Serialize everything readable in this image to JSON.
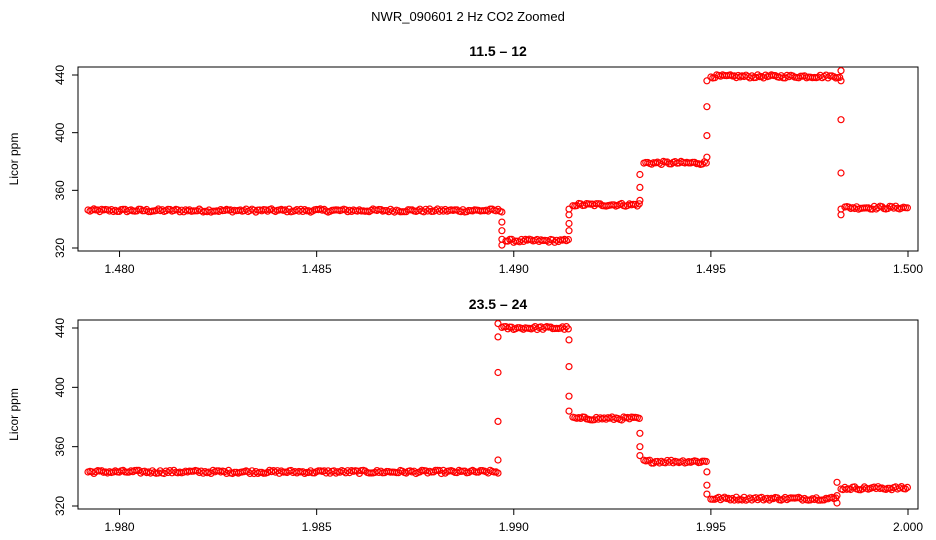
{
  "figure_title": "NWR_090601  2 Hz CO2 Zoomed",
  "colors": {
    "points": "#ff0000",
    "axes": "#000000",
    "background": "#ffffff"
  },
  "chart_data": [
    {
      "type": "scatter",
      "title": "11.5 – 12",
      "ylabel": "Licor ppm",
      "xlabel": "",
      "xlim": [
        1.4792,
        1.5
      ],
      "ylim": [
        320,
        440
      ],
      "xticks": [
        1.48,
        1.485,
        1.49,
        1.495,
        1.5
      ],
      "xtick_labels": [
        "1.480",
        "1.485",
        "1.490",
        "1.495",
        "1.500"
      ],
      "yticks": [
        320,
        360,
        400,
        440
      ],
      "ytick_labels": [
        "320",
        "360",
        "400",
        "440"
      ],
      "grid": false,
      "marker": "open-circle",
      "segments": [
        {
          "x_start": 1.4792,
          "x_end": 1.4897,
          "y": 346
        },
        {
          "x_start": 1.4898,
          "x_end": 1.4914,
          "y": 325
        },
        {
          "x_start": 1.4915,
          "x_end": 1.4932,
          "y": 350
        },
        {
          "x_start": 1.4933,
          "x_end": 1.4949,
          "y": 379
        },
        {
          "x_start": 1.495,
          "x_end": 1.4983,
          "y": 439
        },
        {
          "x_start": 1.4984,
          "x_end": 1.5,
          "y": 348
        }
      ],
      "transitions": [
        {
          "x": 1.4897,
          "y": [
            338,
            332,
            326,
            322
          ]
        },
        {
          "x": 1.4914,
          "y": [
            332,
            337,
            343,
            347
          ]
        },
        {
          "x": 1.4932,
          "y": [
            353,
            362,
            371
          ]
        },
        {
          "x": 1.4949,
          "y": [
            383,
            398,
            418,
            436
          ]
        },
        {
          "x": 1.4983,
          "y": [
            443,
            436,
            409,
            372,
            347,
            343
          ]
        }
      ]
    },
    {
      "type": "scatter",
      "title": "23.5 – 24",
      "ylabel": "Licor ppm",
      "xlabel": "",
      "xlim": [
        1.9792,
        2.0
      ],
      "ylim": [
        320,
        440
      ],
      "xticks": [
        1.98,
        1.985,
        1.99,
        1.995,
        2.0
      ],
      "xtick_labels": [
        "1.980",
        "1.985",
        "1.990",
        "1.995",
        "2.000"
      ],
      "yticks": [
        320,
        360,
        400,
        440
      ],
      "ytick_labels": [
        "320",
        "360",
        "400",
        "440"
      ],
      "grid": false,
      "marker": "open-circle",
      "segments": [
        {
          "x_start": 1.9792,
          "x_end": 1.9896,
          "y": 343
        },
        {
          "x_start": 1.9897,
          "x_end": 1.9914,
          "y": 440
        },
        {
          "x_start": 1.9915,
          "x_end": 1.9932,
          "y": 379
        },
        {
          "x_start": 1.9933,
          "x_end": 1.9949,
          "y": 350
        },
        {
          "x_start": 1.995,
          "x_end": 1.9982,
          "y": 325
        },
        {
          "x_start": 1.9983,
          "x_end": 2.0,
          "y": 332
        }
      ],
      "transitions": [
        {
          "x": 1.9896,
          "y": [
            351,
            377,
            410,
            434,
            443
          ]
        },
        {
          "x": 1.9914,
          "y": [
            432,
            414,
            394,
            384
          ]
        },
        {
          "x": 1.9932,
          "y": [
            369,
            360,
            354
          ]
        },
        {
          "x": 1.9949,
          "y": [
            343,
            334,
            328
          ]
        },
        {
          "x": 1.9982,
          "y": [
            322,
            327,
            336
          ]
        }
      ]
    }
  ]
}
